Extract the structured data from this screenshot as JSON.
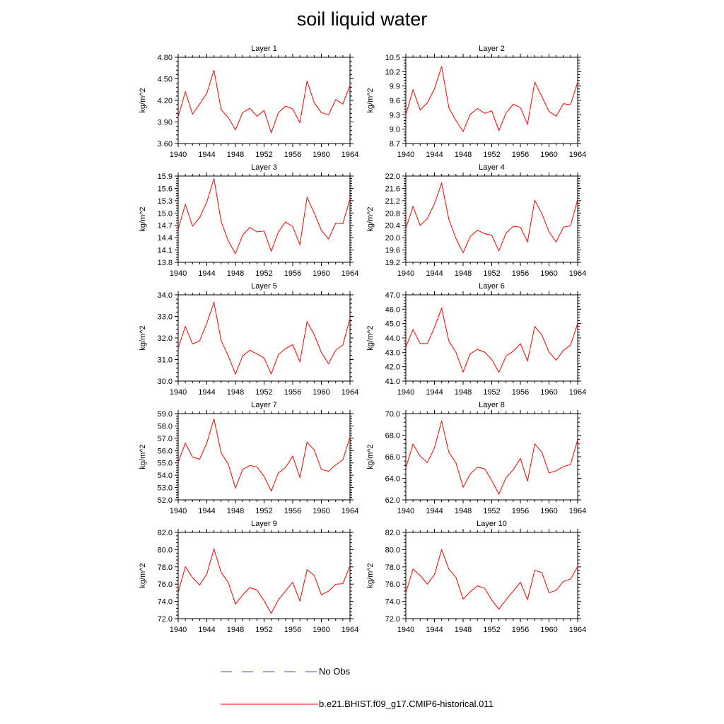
{
  "title": "soil liquid water",
  "legend": {
    "obs_label": "No Obs",
    "model_label": "b.e21.BHIST.f09_g17.CMIP6-historical.011",
    "obs_color": "#3b4fd6",
    "model_color": "#ff0000"
  },
  "chart_data": [
    {
      "type": "line",
      "title": "Layer 1",
      "xlabel": "",
      "ylabel": "kg/m^2",
      "x": [
        1940,
        1941,
        1942,
        1943,
        1944,
        1945,
        1946,
        1947,
        1948,
        1949,
        1950,
        1951,
        1952,
        1953,
        1954,
        1955,
        1956,
        1957,
        1958,
        1959,
        1960,
        1961,
        1962,
        1963,
        1964
      ],
      "xticks": [
        "1940",
        "1944",
        "1948",
        "1952",
        "1956",
        "1960",
        "1964"
      ],
      "xlim": [
        1940,
        1964
      ],
      "ylim": [
        3.6,
        4.8
      ],
      "yticks": [
        "3.60",
        "3.90",
        "4.20",
        "4.50",
        "4.80"
      ],
      "series": [
        {
          "values": [
            3.97,
            4.32,
            4.01,
            4.15,
            4.3,
            4.62,
            4.07,
            3.96,
            3.79,
            4.03,
            4.09,
            3.98,
            4.06,
            3.75,
            4.03,
            4.12,
            4.08,
            3.89,
            4.47,
            4.17,
            4.03,
            4.0,
            4.21,
            4.15,
            4.41
          ]
        }
      ]
    },
    {
      "type": "line",
      "title": "Layer 2",
      "xlabel": "",
      "ylabel": "kg/m^2",
      "x": [
        1940,
        1941,
        1942,
        1943,
        1944,
        1945,
        1946,
        1947,
        1948,
        1949,
        1950,
        1951,
        1952,
        1953,
        1954,
        1955,
        1956,
        1957,
        1958,
        1959,
        1960,
        1961,
        1962,
        1963,
        1964
      ],
      "xticks": [
        "1940",
        "1944",
        "1948",
        "1952",
        "1956",
        "1960",
        "1964"
      ],
      "xlim": [
        1940,
        1964
      ],
      "ylim": [
        8.7,
        10.5
      ],
      "yticks": [
        "8.7",
        "9.0",
        "9.3",
        "9.6",
        "9.9",
        "10.2",
        "10.5"
      ],
      "series": [
        {
          "values": [
            9.3,
            9.82,
            9.4,
            9.55,
            9.84,
            10.31,
            9.45,
            9.18,
            8.95,
            9.31,
            9.43,
            9.33,
            9.38,
            8.97,
            9.34,
            9.52,
            9.45,
            9.1,
            9.98,
            9.68,
            9.37,
            9.27,
            9.53,
            9.51,
            9.98
          ]
        }
      ]
    },
    {
      "type": "line",
      "title": "Layer 3",
      "xlabel": "",
      "ylabel": "kg/m^2",
      "x": [
        1940,
        1941,
        1942,
        1943,
        1944,
        1945,
        1946,
        1947,
        1948,
        1949,
        1950,
        1951,
        1952,
        1953,
        1954,
        1955,
        1956,
        1957,
        1958,
        1959,
        1960,
        1961,
        1962,
        1963,
        1964
      ],
      "xticks": [
        "1940",
        "1944",
        "1948",
        "1952",
        "1956",
        "1960",
        "1964"
      ],
      "xlim": [
        1940,
        1964
      ],
      "ylim": [
        13.8,
        15.9
      ],
      "yticks": [
        "13.8",
        "14.1",
        "14.4",
        "14.7",
        "15.0",
        "15.3",
        "15.6",
        "15.9"
      ],
      "series": [
        {
          "values": [
            14.61,
            15.21,
            14.68,
            14.89,
            15.27,
            15.84,
            14.79,
            14.32,
            14.01,
            14.46,
            14.65,
            14.54,
            14.56,
            14.07,
            14.54,
            14.78,
            14.67,
            14.23,
            15.38,
            15.0,
            14.58,
            14.37,
            14.75,
            14.74,
            15.35
          ]
        }
      ]
    },
    {
      "type": "line",
      "title": "Layer 4",
      "xlabel": "",
      "ylabel": "kg/m^2",
      "x": [
        1940,
        1941,
        1942,
        1943,
        1944,
        1945,
        1946,
        1947,
        1948,
        1949,
        1950,
        1951,
        1952,
        1953,
        1954,
        1955,
        1956,
        1957,
        1958,
        1959,
        1960,
        1961,
        1962,
        1963,
        1964
      ],
      "xticks": [
        "1940",
        "1944",
        "1948",
        "1952",
        "1956",
        "1960",
        "1964"
      ],
      "xlim": [
        1940,
        1964
      ],
      "ylim": [
        19.2,
        22.0
      ],
      "yticks": [
        "19.2",
        "19.6",
        "20.0",
        "20.4",
        "20.8",
        "21.2",
        "21.6",
        "22.0"
      ],
      "series": [
        {
          "values": [
            20.3,
            21.01,
            20.4,
            20.62,
            21.1,
            21.77,
            20.6,
            19.97,
            19.51,
            20.04,
            20.24,
            20.13,
            20.08,
            19.57,
            20.15,
            20.37,
            20.34,
            19.86,
            21.21,
            20.78,
            20.19,
            19.86,
            20.34,
            20.38,
            21.24
          ]
        }
      ]
    },
    {
      "type": "line",
      "title": "Layer 5",
      "xlabel": "",
      "ylabel": "kg/m^2",
      "x": [
        1940,
        1941,
        1942,
        1943,
        1944,
        1945,
        1946,
        1947,
        1948,
        1949,
        1950,
        1951,
        1952,
        1953,
        1954,
        1955,
        1956,
        1957,
        1958,
        1959,
        1960,
        1961,
        1962,
        1963,
        1964
      ],
      "xticks": [
        "1940",
        "1944",
        "1948",
        "1952",
        "1956",
        "1960",
        "1964"
      ],
      "xlim": [
        1940,
        1964
      ],
      "ylim": [
        30.0,
        34.0
      ],
      "yticks": [
        "30.0",
        "31.0",
        "32.0",
        "33.0",
        "34.0"
      ],
      "series": [
        {
          "values": [
            31.53,
            32.53,
            31.72,
            31.87,
            32.69,
            33.65,
            31.88,
            31.16,
            30.32,
            31.16,
            31.43,
            31.26,
            31.07,
            30.33,
            31.23,
            31.51,
            31.69,
            30.9,
            32.75,
            32.15,
            31.33,
            30.81,
            31.43,
            31.68,
            32.91
          ]
        }
      ]
    },
    {
      "type": "line",
      "title": "Layer 6",
      "xlabel": "",
      "ylabel": "kg/m^2",
      "x": [
        1940,
        1941,
        1942,
        1943,
        1944,
        1945,
        1946,
        1947,
        1948,
        1949,
        1950,
        1951,
        1952,
        1953,
        1954,
        1955,
        1956,
        1957,
        1958,
        1959,
        1960,
        1961,
        1962,
        1963,
        1964
      ],
      "xticks": [
        "1940",
        "1944",
        "1948",
        "1952",
        "1956",
        "1960",
        "1964"
      ],
      "xlim": [
        1940,
        1964
      ],
      "ylim": [
        41.0,
        47.0
      ],
      "yticks": [
        "41.0",
        "42.0",
        "43.0",
        "44.0",
        "45.0",
        "46.0",
        "47.0"
      ],
      "series": [
        {
          "values": [
            43.38,
            44.58,
            43.61,
            43.61,
            44.73,
            46.07,
            43.79,
            43.0,
            41.63,
            42.9,
            43.21,
            43.01,
            42.51,
            41.6,
            42.74,
            43.08,
            43.6,
            42.4,
            44.79,
            44.2,
            43.01,
            42.45,
            43.14,
            43.5,
            45.02
          ]
        }
      ]
    },
    {
      "type": "line",
      "title": "Layer 7",
      "xlabel": "",
      "ylabel": "kg/m^2",
      "x": [
        1940,
        1941,
        1942,
        1943,
        1944,
        1945,
        1946,
        1947,
        1948,
        1949,
        1950,
        1951,
        1952,
        1953,
        1954,
        1955,
        1956,
        1957,
        1958,
        1959,
        1960,
        1961,
        1962,
        1963,
        1964
      ],
      "xticks": [
        "1940",
        "1944",
        "1948",
        "1952",
        "1956",
        "1960",
        "1964"
      ],
      "xlim": [
        1940,
        1964
      ],
      "ylim": [
        52.0,
        59.0
      ],
      "yticks": [
        "52.0",
        "53.0",
        "54.0",
        "55.0",
        "56.0",
        "57.0",
        "58.0",
        "59.0"
      ],
      "series": [
        {
          "values": [
            55.07,
            56.6,
            55.47,
            55.3,
            56.62,
            58.58,
            55.81,
            54.89,
            52.95,
            54.46,
            54.79,
            54.68,
            53.9,
            52.72,
            54.19,
            54.63,
            55.55,
            53.82,
            56.68,
            56.05,
            54.47,
            54.32,
            54.84,
            55.25,
            57.1
          ]
        }
      ]
    },
    {
      "type": "line",
      "title": "Layer 8",
      "xlabel": "",
      "ylabel": "kg/m^2",
      "x": [
        1940,
        1941,
        1942,
        1943,
        1944,
        1945,
        1946,
        1947,
        1948,
        1949,
        1950,
        1951,
        1952,
        1953,
        1954,
        1955,
        1956,
        1957,
        1958,
        1959,
        1960,
        1961,
        1962,
        1963,
        1964
      ],
      "xticks": [
        "1940",
        "1944",
        "1948",
        "1952",
        "1956",
        "1960",
        "1964"
      ],
      "xlim": [
        1940,
        1964
      ],
      "ylim": [
        62.0,
        70.0
      ],
      "yticks": [
        "62.0",
        "64.0",
        "66.0",
        "68.0",
        "70.0"
      ],
      "series": [
        {
          "values": [
            64.97,
            67.17,
            66.05,
            65.46,
            66.82,
            69.33,
            66.41,
            65.43,
            63.17,
            64.4,
            65.03,
            64.88,
            63.81,
            62.53,
            64.07,
            64.8,
            65.83,
            63.73,
            67.18,
            66.42,
            64.5,
            64.7,
            65.08,
            65.27,
            67.59
          ]
        }
      ]
    },
    {
      "type": "line",
      "title": "Layer 9",
      "xlabel": "",
      "ylabel": "kg/m^2",
      "x": [
        1940,
        1941,
        1942,
        1943,
        1944,
        1945,
        1946,
        1947,
        1948,
        1949,
        1950,
        1951,
        1952,
        1953,
        1954,
        1955,
        1956,
        1957,
        1958,
        1959,
        1960,
        1961,
        1962,
        1963,
        1964
      ],
      "xticks": [
        "1940",
        "1944",
        "1948",
        "1952",
        "1956",
        "1960",
        "1964"
      ],
      "xlim": [
        1940,
        1964
      ],
      "ylim": [
        72.0,
        82.0
      ],
      "yticks": [
        "72.0",
        "74.0",
        "76.0",
        "78.0",
        "80.0",
        "82.0"
      ],
      "series": [
        {
          "values": [
            75.04,
            78.0,
            76.76,
            75.89,
            77.18,
            80.08,
            77.36,
            76.2,
            73.7,
            74.74,
            75.61,
            75.31,
            74.07,
            72.62,
            74.2,
            75.21,
            76.21,
            74.05,
            77.67,
            77.0,
            74.77,
            75.19,
            75.99,
            76.05,
            78.12
          ]
        }
      ]
    },
    {
      "type": "line",
      "title": "Layer 10",
      "xlabel": "",
      "ylabel": "kg/m^2",
      "x": [
        1940,
        1941,
        1942,
        1943,
        1944,
        1945,
        1946,
        1947,
        1948,
        1949,
        1950,
        1951,
        1952,
        1953,
        1954,
        1955,
        1956,
        1957,
        1958,
        1959,
        1960,
        1961,
        1962,
        1963,
        1964
      ],
      "xticks": [
        "1940",
        "1944",
        "1948",
        "1952",
        "1956",
        "1960",
        "1964"
      ],
      "xlim": [
        1940,
        1964
      ],
      "ylim": [
        72.0,
        82.0
      ],
      "yticks": [
        "72.0",
        "74.0",
        "76.0",
        "78.0",
        "80.0",
        "82.0"
      ],
      "series": [
        {
          "values": [
            74.98,
            77.75,
            77.0,
            76.0,
            77.11,
            79.99,
            77.75,
            76.78,
            74.27,
            75.12,
            75.81,
            75.53,
            74.16,
            73.1,
            74.21,
            75.2,
            76.21,
            74.21,
            77.61,
            77.33,
            75.01,
            75.28,
            76.31,
            76.58,
            78.04
          ]
        }
      ]
    }
  ]
}
